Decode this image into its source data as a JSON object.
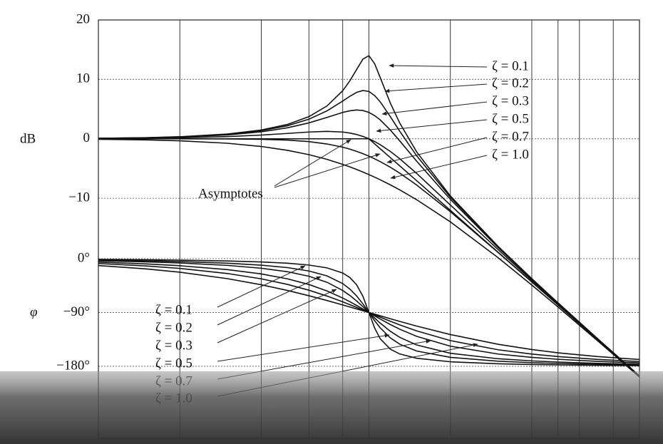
{
  "chart_data": {
    "type": "line",
    "xscale": "log",
    "grid": true,
    "ylabel": "dB",
    "y2label": "φ",
    "xlim": [
      0.1,
      10
    ],
    "xticks": [
      0.2,
      0.4,
      0.6,
      0.8,
      1,
      2,
      4,
      5,
      6,
      8
    ],
    "ylim": [
      -50.4,
      20
    ],
    "yticks": [
      20,
      10,
      0,
      {
        "value": -10,
        "label": "−10"
      }
    ],
    "y2lim": [
      -300.4,
      399.3
    ],
    "y2ticks": [
      {
        "value": 0,
        "label": "0°"
      },
      {
        "value": -90,
        "label": "−90°"
      },
      {
        "value": -180,
        "label": "−180°"
      }
    ],
    "x": [
      0.1,
      0.15,
      0.2,
      0.3,
      0.4,
      0.5,
      0.6,
      0.7,
      0.8,
      0.85,
      0.9,
      0.95,
      1,
      1.05,
      1.1,
      1.2,
      1.3,
      1.5,
      2,
      3,
      4,
      5,
      7,
      10
    ],
    "series": [
      {
        "name": "ζ = 0.1",
        "color": "#111111",
        "axis": "y",
        "values": [
          0.09,
          0.19,
          0.35,
          0.8,
          1.48,
          2.42,
          3.73,
          5.53,
          8.09,
          9.75,
          11.64,
          13.41,
          13.98,
          12.63,
          10.34,
          6.0,
          2.65,
          -2.18,
          -9.62,
          -18.09,
          -23.53,
          -27.61,
          -33.63,
          -39.91
        ]
      },
      {
        "name": "ζ = 0.2",
        "color": "#111111",
        "axis": "y",
        "values": [
          0.08,
          0.18,
          0.32,
          0.74,
          1.36,
          2.2,
          3.3,
          4.7,
          6.35,
          7.15,
          7.81,
          8.13,
          7.96,
          7.28,
          6.24,
          3.73,
          1.27,
          -2.84,
          -9.84,
          -18.16,
          -23.57,
          -27.63,
          -33.64,
          -39.92
        ]
      },
      {
        "name": "ζ = 0.3",
        "color": "#111111",
        "axis": "y",
        "values": [
          0.07,
          0.16,
          0.29,
          0.65,
          1.17,
          1.85,
          2.68,
          3.6,
          4.44,
          4.72,
          4.85,
          4.76,
          4.44,
          3.9,
          3.19,
          1.48,
          -0.35,
          -3.75,
          -10.19,
          -18.28,
          -23.63,
          -27.67,
          -33.66,
          -39.93
        ]
      },
      {
        "name": "ζ = 0.5",
        "color": "#111111",
        "axis": "y",
        "values": [
          0.04,
          0.1,
          0.17,
          0.37,
          0.63,
          0.9,
          1.14,
          1.25,
          1.14,
          0.97,
          0.73,
          0.4,
          0,
          -0.46,
          -0.98,
          -2.13,
          -3.36,
          -5.81,
          -11.14,
          -18.63,
          -23.82,
          -27.79,
          -33.72,
          -39.96
        ]
      },
      {
        "name": "ζ = 0.7",
        "color": "#111111",
        "axis": "y",
        "values": [
          0.0,
          0.0,
          0.0,
          -0.02,
          -0.08,
          -0.22,
          -0.47,
          -0.87,
          -1.41,
          -1.74,
          -2.11,
          -2.5,
          -2.92,
          -3.37,
          -3.83,
          -4.79,
          -5.78,
          -7.76,
          -12.26,
          -19.12,
          -24.09,
          -27.96,
          -33.8,
          -40.0
        ]
      },
      {
        "name": "ζ = 1.0",
        "color": "#111111",
        "axis": "y",
        "values": [
          -0.09,
          -0.19,
          -0.34,
          -0.75,
          -1.29,
          -1.94,
          -2.67,
          -3.46,
          -4.3,
          -4.72,
          -5.15,
          -5.59,
          -6.02,
          -6.45,
          -6.89,
          -7.75,
          -8.6,
          -10.24,
          -13.98,
          -20,
          -24.61,
          -28.3,
          -33.98,
          -40.09
        ]
      },
      {
        "name": "Asymptotes",
        "color": "#111111",
        "axis": "y",
        "values": [
          0,
          0,
          0,
          0,
          0,
          0,
          0,
          0,
          0,
          0,
          0,
          0,
          0,
          -0.85,
          -1.66,
          -3.17,
          -4.56,
          -7.04,
          -12.04,
          -19.08,
          -24.08,
          -27.96,
          -33.8,
          -40
        ]
      },
      {
        "name": "ζ = 0.1",
        "color": "#111111",
        "axis": "y2",
        "values": [
          -1.16,
          -1.76,
          -2.39,
          -3.77,
          -5.44,
          -7.59,
          -10.62,
          -15.35,
          -23.96,
          -31.49,
          -43.45,
          -62.83,
          -90,
          -116.01,
          -133.67,
          -151.39,
          -159.35,
          -166.5,
          -172.41,
          -175.71,
          -176.95,
          -177.61,
          -178.33,
          -178.84
        ]
      },
      {
        "name": "ζ = 0.2",
        "color": "#111111",
        "axis": "y2",
        "values": [
          -2.31,
          -3.51,
          -4.76,
          -7.51,
          -10.78,
          -14.93,
          -20.56,
          -28.77,
          -41.63,
          -50.78,
          -62.18,
          -75.61,
          -90,
          -103.71,
          -115.52,
          -132.51,
          -143.0,
          -154.36,
          -165.07,
          -171.47,
          -173.91,
          -175.24,
          -176.66,
          -177.69
        ]
      },
      {
        "name": "ζ = 0.3",
        "color": "#111111",
        "axis": "y2",
        "values": [
          -3.47,
          -5.26,
          -7.13,
          -11.19,
          -15.95,
          -21.8,
          -29.36,
          -39.47,
          -53.13,
          -61.45,
          -70.62,
          -80.29,
          -90,
          -99.24,
          -107.65,
          -121.43,
          -131.5,
          -144.25,
          -158.2,
          -167.32,
          -170.91,
          -172.87,
          -175.0,
          -176.53
        ]
      },
      {
        "name": "ζ = 0.5",
        "color": "#111111",
        "axis": "y2",
        "values": [
          -5.77,
          -8.72,
          -11.77,
          -18.25,
          -25.46,
          -33.69,
          -43.15,
          -53.92,
          -65.77,
          -71.92,
          -78.08,
          -84.14,
          -90,
          -95.58,
          -100.81,
          -110.14,
          -117.96,
          -129.81,
          -146.31,
          -159.44,
          -165.07,
          -168.23,
          -171.7,
          -174.23
        ]
      },
      {
        "name": "ζ = 0.7",
        "color": "#111111",
        "axis": "y2",
        "values": [
          -8.05,
          -12.13,
          -16.26,
          -24.78,
          -33.69,
          -43.03,
          -52.7,
          -62.51,
          -72.18,
          -76.87,
          -81.43,
          -85.81,
          -90,
          -93.99,
          -97.77,
          -104.68,
          -110.76,
          -120.76,
          -136.97,
          -152.3,
          -159.53,
          -163.74,
          -168.46,
          -171.95
        ]
      },
      {
        "name": "ζ = 1.0",
        "color": "#111111",
        "axis": "y2",
        "values": [
          -11.42,
          -17.06,
          -22.62,
          -33.4,
          -43.6,
          -53.13,
          -61.93,
          -70.0,
          -77.32,
          -80.73,
          -83.97,
          -87.06,
          -90,
          -92.79,
          -95.45,
          -100.39,
          -104.86,
          -112.62,
          -126.87,
          -143.13,
          -151.93,
          -157.38,
          -163.74,
          -168.58
        ]
      }
    ]
  }
}
